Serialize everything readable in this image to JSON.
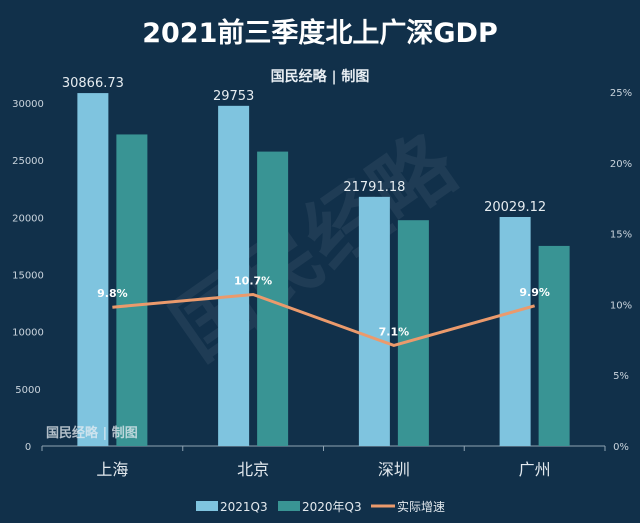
{
  "chart_data": {
    "type": "bar",
    "title": "2021前三季度北上广深GDP",
    "subtitle": "国民经略 | 制图",
    "watermark": "国民经略",
    "corner_credit": "国民经略 | 制图",
    "categories": [
      "上海",
      "北京",
      "深圳",
      "广州"
    ],
    "series": [
      {
        "name": "2021Q3",
        "type": "bar",
        "axis": "left",
        "color": "#7fc4df",
        "values": [
          30866.73,
          29753,
          21791.18,
          20029.12
        ],
        "labels": [
          "30866.73",
          "29753",
          "21791.18",
          "20029.12"
        ]
      },
      {
        "name": "2020年Q3",
        "type": "bar",
        "axis": "left",
        "color": "#399494",
        "values": [
          27250,
          25750,
          19750,
          17500
        ]
      },
      {
        "name": "实际增速",
        "type": "line",
        "axis": "right",
        "color": "#eb9a6c",
        "values": [
          9.8,
          10.7,
          7.1,
          9.9
        ],
        "labels": [
          "9.8%",
          "10.7%",
          "7.1%",
          "9.9%"
        ]
      }
    ],
    "left_axis": {
      "ticks": [
        0,
        5000,
        10000,
        15000,
        20000,
        25000,
        30000
      ],
      "range": [
        0,
        30000
      ]
    },
    "right_axis": {
      "ticks": [
        "0%",
        "5%",
        "10%",
        "15%",
        "20%",
        "25%"
      ],
      "range": [
        0,
        25
      ]
    },
    "legend": "bottom",
    "grid": false,
    "background": "#11304a"
  }
}
